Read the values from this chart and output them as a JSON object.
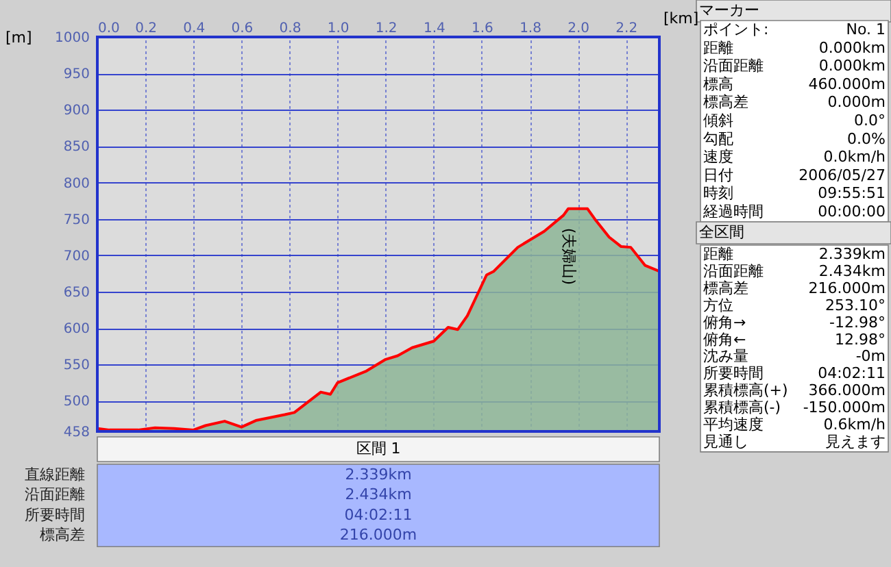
{
  "chart_data": {
    "type": "area",
    "xlabel": "[km]",
    "ylabel": "[m]",
    "x": [
      0,
      0.05,
      0.17,
      0.24,
      0.32,
      0.4,
      0.45,
      0.53,
      0.6,
      0.66,
      0.78,
      0.82,
      0.93,
      0.97,
      1.0,
      1.12,
      1.2,
      1.25,
      1.31,
      1.4,
      1.46,
      1.5,
      1.54,
      1.62,
      1.65,
      1.75,
      1.86,
      1.94,
      1.96,
      2.04,
      2.07,
      2.13,
      2.18,
      2.22,
      2.28,
      2.339
    ],
    "series": [
      {
        "color": "#ff0000",
        "values": [
          462,
          460,
          460,
          463,
          462,
          460,
          466,
          472,
          464,
          473,
          481,
          484,
          512,
          509,
          525,
          541,
          557,
          562,
          573,
          582,
          601,
          598,
          617,
          673,
          678,
          711,
          733,
          755,
          764,
          764,
          750,
          725,
          712,
          711,
          686,
          678
        ]
      }
    ],
    "xlim": [
      0,
      2.339
    ],
    "xticks": [
      {
        "value": 0,
        "label": "0.0"
      },
      0.2,
      0.4,
      0.6,
      0.8,
      {
        "value": 1,
        "label": "1.0"
      },
      1.2,
      1.4,
      1.6,
      1.8,
      {
        "value": 2,
        "label": "2.0"
      },
      2.2
    ],
    "ylim": [
      458,
      1000
    ],
    "yticks": [
      458,
      500,
      550,
      600,
      650,
      700,
      750,
      800,
      850,
      900,
      950,
      1000
    ],
    "grid": true,
    "annotations": [
      "(夫婦山)",
      "マーカー",
      "ポイント:",
      "No. 1",
      "距離",
      "0.000km",
      "沿面距離",
      "0.000km",
      "標高",
      "460.000m",
      "標高差",
      "0.000m",
      "傾斜",
      "0.0°",
      "勾配",
      "0.0%",
      "速度",
      "0.0km/h",
      "日付",
      "2006/05/27",
      "時刻",
      "09:55:51",
      "経過時間",
      "00:00:00",
      "全区間",
      "距離",
      "2.339km",
      "沿面距離",
      "2.434km",
      "標高差",
      "216.000m",
      "方位",
      "253.10°",
      "俯角→",
      "-12.98°",
      "俯角←",
      "12.98°",
      "沈み量",
      "-0m",
      "所要時間",
      "04:02:11",
      "累積標高(+)",
      "366.000m",
      "累積標高(-)",
      "-150.000m",
      "平均速度",
      "0.6km/h",
      "見通し",
      "見えます",
      "区間 1",
      "直線距離",
      "2.339km",
      "沿面距離",
      "2.434km",
      "所要時間",
      "04:02:11",
      "標高差",
      "216.000m"
    ]
  }
}
